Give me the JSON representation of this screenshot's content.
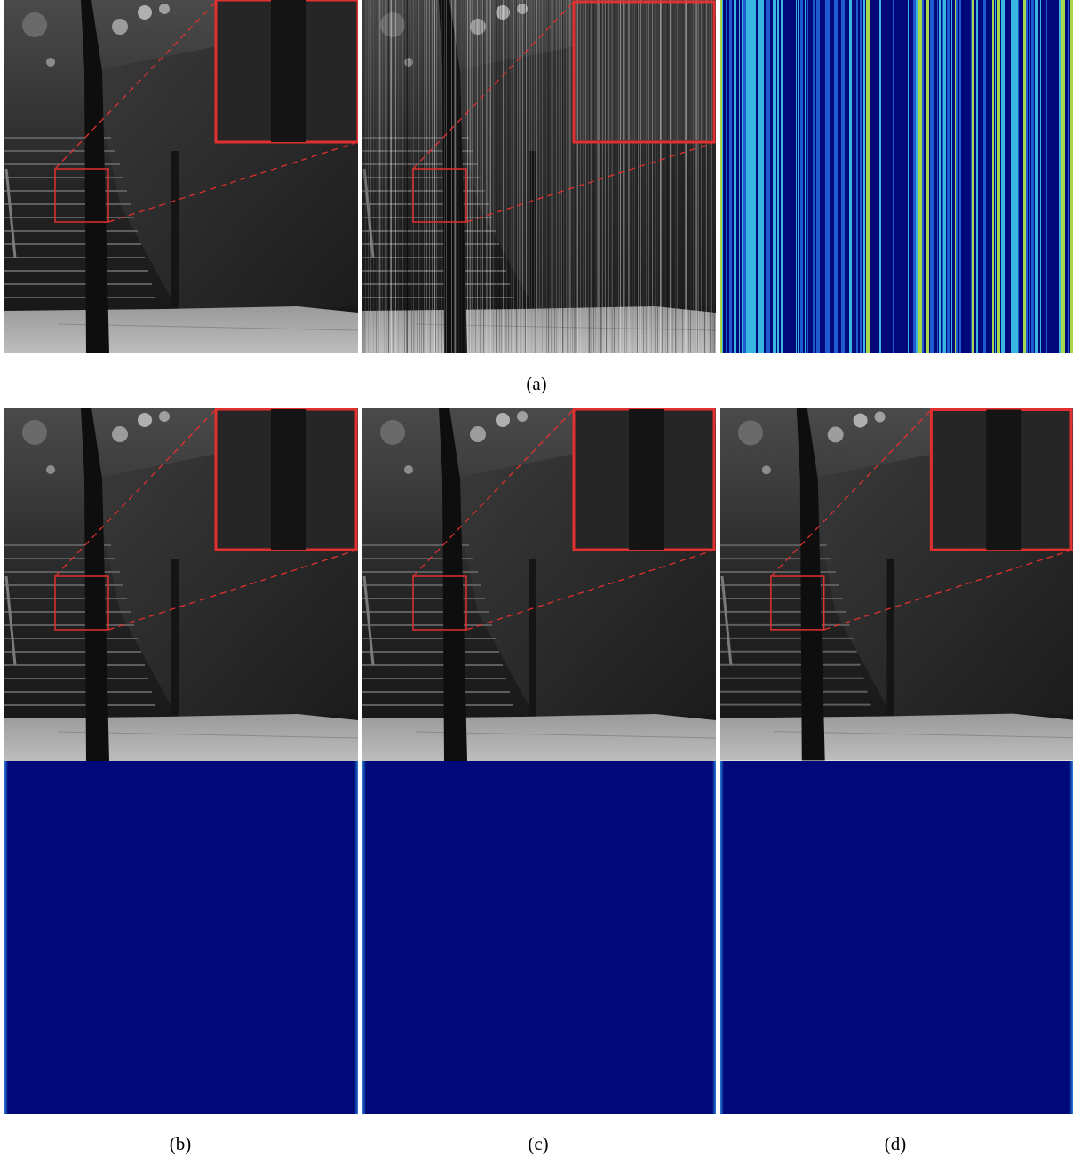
{
  "figure": {
    "captions": {
      "a": "(a)",
      "b": "(b)",
      "c": "(c)",
      "d": "(d)"
    },
    "colors": {
      "zoom_box": "#e03030",
      "heatmap_base": "#00087a",
      "heatmap_stripe_blue": "#1e5ad0",
      "heatmap_stripe_cyan": "#39b6e0",
      "heatmap_stripe_green": "#a8d84a"
    }
  }
}
